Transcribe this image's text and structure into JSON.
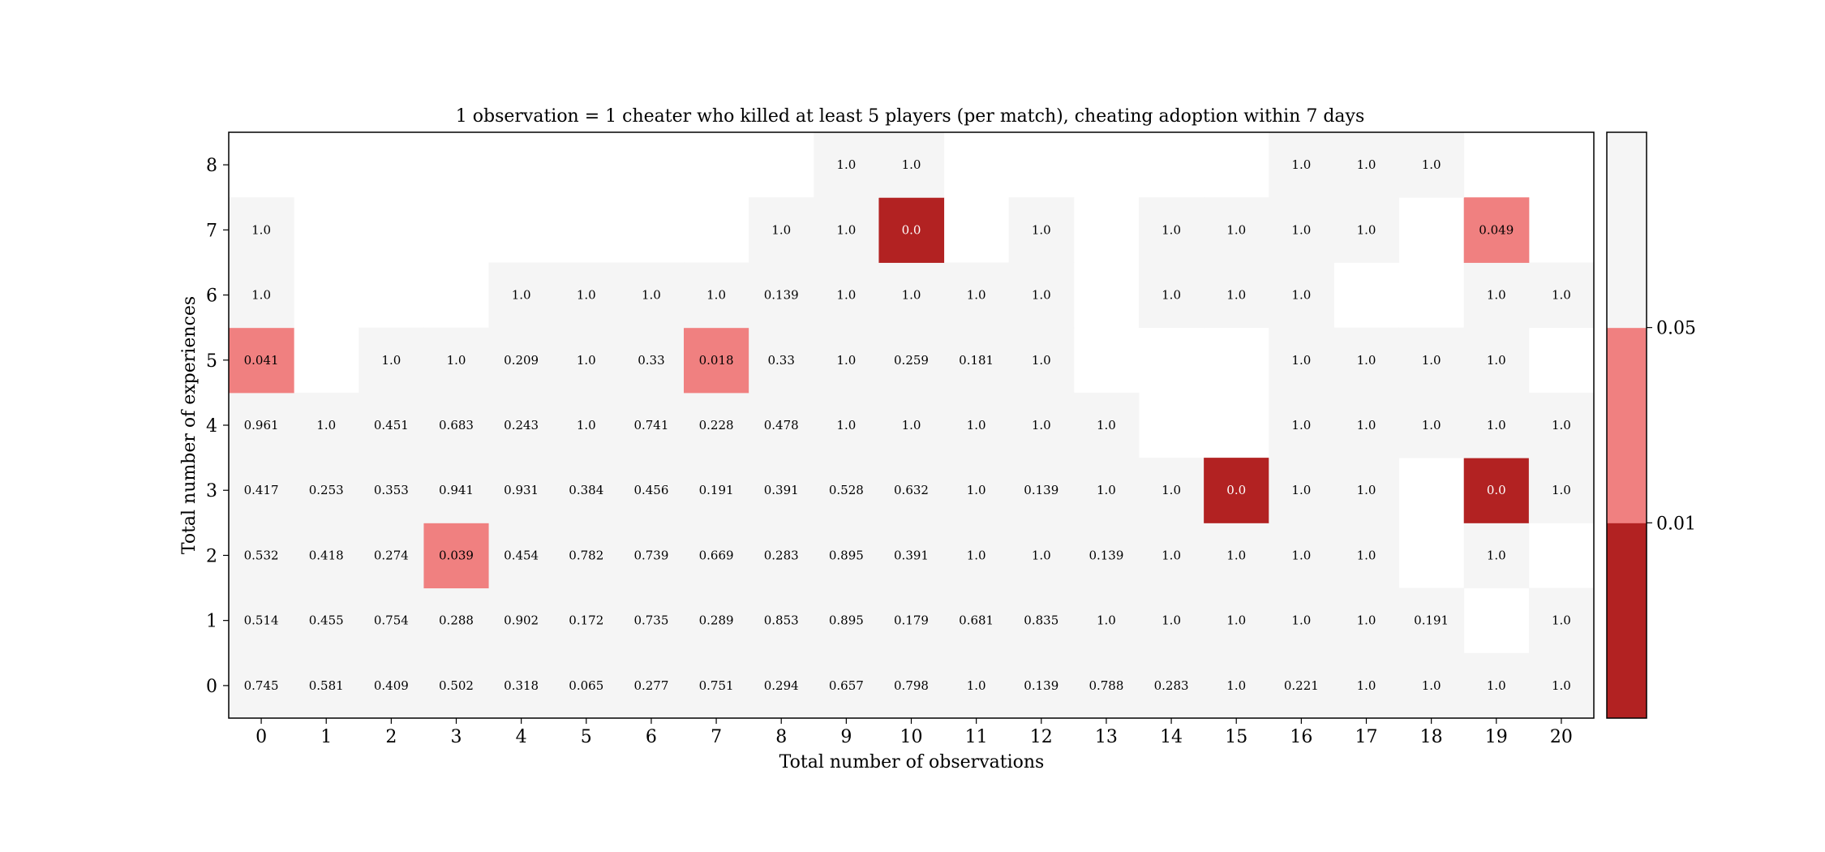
{
  "chart_data": {
    "type": "heatmap",
    "title": "1 observation = 1 cheater who killed at least 5 players (per match), cheating adoption within 7 days",
    "xlabel": "Total number of observations",
    "ylabel": "Total number of experiences",
    "x": [
      0,
      1,
      2,
      3,
      4,
      5,
      6,
      7,
      8,
      9,
      10,
      11,
      12,
      13,
      14,
      15,
      16,
      17,
      18,
      19,
      20
    ],
    "y": [
      0,
      1,
      2,
      3,
      4,
      5,
      6,
      7,
      8
    ],
    "rows": [
      [
        "0.745",
        "0.581",
        "0.409",
        "0.502",
        "0.318",
        "0.065",
        "0.277",
        "0.751",
        "0.294",
        "0.657",
        "0.798",
        "1.0",
        "0.139",
        "0.788",
        "0.283",
        "1.0",
        "0.221",
        "1.0",
        "1.0",
        "1.0",
        "1.0"
      ],
      [
        "0.514",
        "0.455",
        "0.754",
        "0.288",
        "0.902",
        "0.172",
        "0.735",
        "0.289",
        "0.853",
        "0.895",
        "0.179",
        "0.681",
        "0.835",
        "1.0",
        "1.0",
        "1.0",
        "1.0",
        "1.0",
        "0.191",
        null,
        "1.0"
      ],
      [
        "0.532",
        "0.418",
        "0.274",
        "0.039",
        "0.454",
        "0.782",
        "0.739",
        "0.669",
        "0.283",
        "0.895",
        "0.391",
        "1.0",
        "1.0",
        "0.139",
        "1.0",
        "1.0",
        "1.0",
        "1.0",
        null,
        "1.0",
        null
      ],
      [
        "0.417",
        "0.253",
        "0.353",
        "0.941",
        "0.931",
        "0.384",
        "0.456",
        "0.191",
        "0.391",
        "0.528",
        "0.632",
        "1.0",
        "0.139",
        "1.0",
        "1.0",
        "0.0",
        "1.0",
        "1.0",
        null,
        "0.0",
        "1.0"
      ],
      [
        "0.961",
        "1.0",
        "0.451",
        "0.683",
        "0.243",
        "1.0",
        "0.741",
        "0.228",
        "0.478",
        "1.0",
        "1.0",
        "1.0",
        "1.0",
        "1.0",
        null,
        null,
        "1.0",
        "1.0",
        "1.0",
        "1.0",
        "1.0"
      ],
      [
        "0.041",
        null,
        "1.0",
        "1.0",
        "0.209",
        "1.0",
        "0.33",
        "0.018",
        "0.33",
        "1.0",
        "0.259",
        "0.181",
        "1.0",
        null,
        null,
        null,
        "1.0",
        "1.0",
        "1.0",
        "1.0",
        null
      ],
      [
        "1.0",
        null,
        null,
        null,
        "1.0",
        "1.0",
        "1.0",
        "1.0",
        "0.139",
        "1.0",
        "1.0",
        "1.0",
        "1.0",
        null,
        "1.0",
        "1.0",
        "1.0",
        null,
        null,
        "1.0",
        "1.0"
      ],
      [
        "1.0",
        null,
        null,
        null,
        null,
        null,
        null,
        null,
        "1.0",
        "1.0",
        "0.0",
        null,
        "1.0",
        null,
        "1.0",
        "1.0",
        "1.0",
        "1.0",
        null,
        "0.049",
        null
      ],
      [
        null,
        null,
        null,
        null,
        null,
        null,
        null,
        null,
        null,
        "1.0",
        "1.0",
        null,
        null,
        null,
        null,
        null,
        "1.0",
        "1.0",
        "1.0",
        null,
        null
      ]
    ],
    "colorbar": {
      "bounds": [
        0,
        0.01,
        0.05,
        1
      ],
      "tick_labels": [
        "0.01",
        "0.05"
      ],
      "colors": [
        "#b22222",
        "#f08080",
        "#f5f5f5"
      ]
    },
    "grid": false,
    "legend": "colorbar-right"
  }
}
